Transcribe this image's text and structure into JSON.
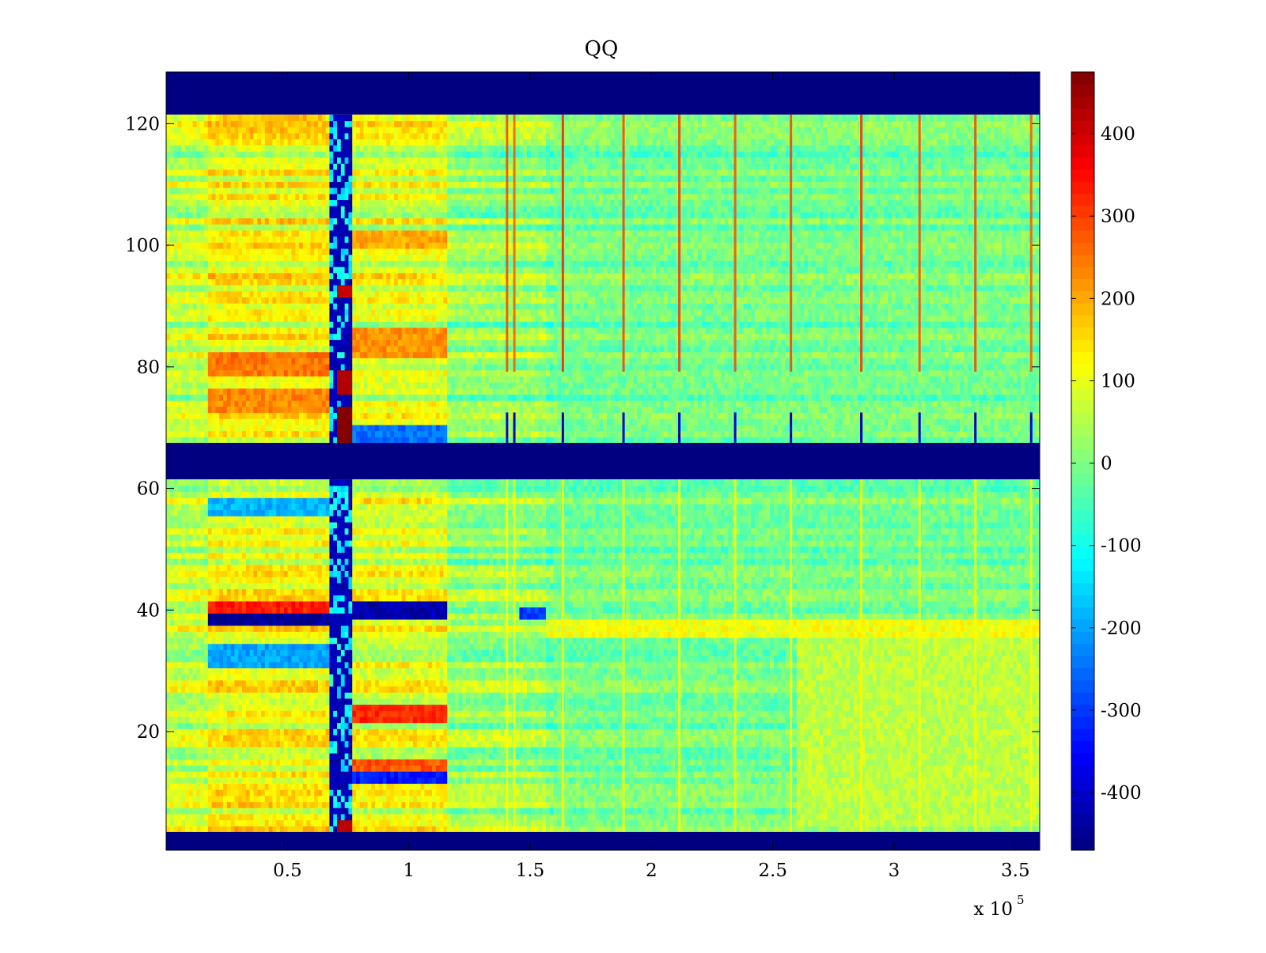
{
  "chart_data": {
    "type": "heatmap",
    "title": "QQ",
    "xlabel": "",
    "ylabel": "",
    "x_multiplier_label": "x 10",
    "x_multiplier_exponent": "5",
    "xlim": [
      0,
      3.6
    ],
    "ylim": [
      0.5,
      128.5
    ],
    "grid": false,
    "x_ticks": [
      {
        "value": 0.5,
        "label": "0.5"
      },
      {
        "value": 1,
        "label": "1"
      },
      {
        "value": 1.5,
        "label": "1.5"
      },
      {
        "value": 2,
        "label": "2"
      },
      {
        "value": 2.5,
        "label": "2.5"
      },
      {
        "value": 3,
        "label": "3"
      },
      {
        "value": 3.5,
        "label": "3.5"
      }
    ],
    "y_ticks": [
      {
        "value": 20,
        "label": "20"
      },
      {
        "value": 40,
        "label": "40"
      },
      {
        "value": 60,
        "label": "60"
      },
      {
        "value": 80,
        "label": "80"
      },
      {
        "value": 100,
        "label": "100"
      },
      {
        "value": 120,
        "label": "120"
      }
    ],
    "colorbar": {
      "colormap": "jet",
      "clim": [
        -470,
        475
      ],
      "ticks": [
        {
          "value": 400,
          "label": "400"
        },
        {
          "value": 300,
          "label": "300"
        },
        {
          "value": 200,
          "label": "200"
        },
        {
          "value": 100,
          "label": "100"
        },
        {
          "value": 0,
          "label": "0"
        },
        {
          "value": -100,
          "label": "-100"
        },
        {
          "value": -200,
          "label": "-200"
        },
        {
          "value": -300,
          "label": "-300"
        },
        {
          "value": -400,
          "label": "-400"
        }
      ]
    },
    "fill_value": -470,
    "empty_row_bands": [
      {
        "y_from": 0.5,
        "y_to": 3.5
      },
      {
        "y_from": 61.5,
        "y_to": 67.5
      },
      {
        "y_from": 121.5,
        "y_to": 128.5
      }
    ],
    "x_segments": [
      {
        "x_from": 0.0,
        "x_to": 0.18,
        "bias": 60
      },
      {
        "x_from": 0.18,
        "x_to": 0.68,
        "bias": 110
      },
      {
        "x_from": 0.68,
        "x_to": 0.77,
        "bias": -450
      },
      {
        "x_from": 0.77,
        "x_to": 1.16,
        "bias": 90
      },
      {
        "x_from": 1.16,
        "x_to": 1.56,
        "bias": 20
      },
      {
        "x_from": 1.56,
        "x_to": 3.6,
        "bias": -10
      }
    ],
    "row_bands": [
      {
        "y_from": 79,
        "y_to": 82,
        "x_from": 0.18,
        "x_to": 0.68,
        "value": 250
      },
      {
        "y_from": 73,
        "y_to": 76,
        "x_from": 0.18,
        "x_to": 0.68,
        "value": 230
      },
      {
        "y_from": 119,
        "y_to": 121,
        "x_from": 0.2,
        "x_to": 0.65,
        "value": 180
      },
      {
        "y_from": 82,
        "y_to": 86,
        "x_from": 0.77,
        "x_to": 1.16,
        "value": 220
      },
      {
        "y_from": 100,
        "y_to": 102,
        "x_from": 0.77,
        "x_to": 1.16,
        "value": 200
      },
      {
        "y_from": 39,
        "y_to": 41,
        "x_from": 0.77,
        "x_to": 1.16,
        "value": -430
      },
      {
        "y_from": 38,
        "y_to": 39,
        "x_from": 0.18,
        "x_to": 0.68,
        "value": -450
      },
      {
        "y_from": 40,
        "y_to": 41,
        "x_from": 0.18,
        "x_to": 0.68,
        "value": 330
      },
      {
        "y_from": 22,
        "y_to": 24,
        "x_from": 0.77,
        "x_to": 1.16,
        "value": 320
      },
      {
        "y_from": 12,
        "y_to": 14,
        "x_from": 0.77,
        "x_to": 1.16,
        "value": -330
      },
      {
        "y_from": 14,
        "y_to": 15,
        "x_from": 0.77,
        "x_to": 1.16,
        "value": 280
      },
      {
        "y_from": 56,
        "y_to": 58,
        "x_from": 0.18,
        "x_to": 0.68,
        "value": -180
      },
      {
        "y_from": 31,
        "y_to": 34,
        "x_from": 0.18,
        "x_to": 0.68,
        "value": -200
      },
      {
        "y_from": 68,
        "y_to": 70,
        "x_from": 0.77,
        "x_to": 1.16,
        "value": -250
      },
      {
        "y_from": 39,
        "y_to": 40,
        "x_from": 1.45,
        "x_to": 1.56,
        "value": -300
      },
      {
        "y_from": 36,
        "y_to": 38,
        "x_from": 1.56,
        "x_to": 3.6,
        "value": 110
      },
      {
        "y_from": 5,
        "y_to": 35,
        "x_from": 2.6,
        "x_to": 3.6,
        "value": 60
      }
    ],
    "vertical_stripes": [
      {
        "x": 1.4,
        "top_value": 300,
        "bottom_value": -380
      },
      {
        "x": 1.43,
        "top_value": 280,
        "bottom_value": -400
      },
      {
        "x": 1.63,
        "top_value": 330,
        "bottom_value": -420
      },
      {
        "x": 1.88,
        "top_value": 300,
        "bottom_value": -400
      },
      {
        "x": 2.11,
        "top_value": 310,
        "bottom_value": -410
      },
      {
        "x": 2.34,
        "top_value": 290,
        "bottom_value": -380
      },
      {
        "x": 2.57,
        "top_value": 300,
        "bottom_value": -400
      },
      {
        "x": 2.86,
        "top_value": 320,
        "bottom_value": -420
      },
      {
        "x": 3.1,
        "top_value": 290,
        "bottom_value": -400
      },
      {
        "x": 3.33,
        "top_value": 300,
        "bottom_value": -410
      },
      {
        "x": 3.56,
        "top_value": 280,
        "bottom_value": -390
      }
    ],
    "spike_cells": [
      {
        "x_from": 0.7,
        "x_to": 0.77,
        "y_from": 67.5,
        "y_to": 74,
        "value": 470
      },
      {
        "x_from": 0.7,
        "x_to": 0.77,
        "y_from": 76,
        "y_to": 80,
        "value": 430
      },
      {
        "x_from": 0.7,
        "x_to": 0.77,
        "y_from": 92,
        "y_to": 94,
        "value": 410
      },
      {
        "x_from": 0.7,
        "x_to": 0.77,
        "y_from": 3.5,
        "y_to": 6,
        "value": 420
      }
    ]
  }
}
